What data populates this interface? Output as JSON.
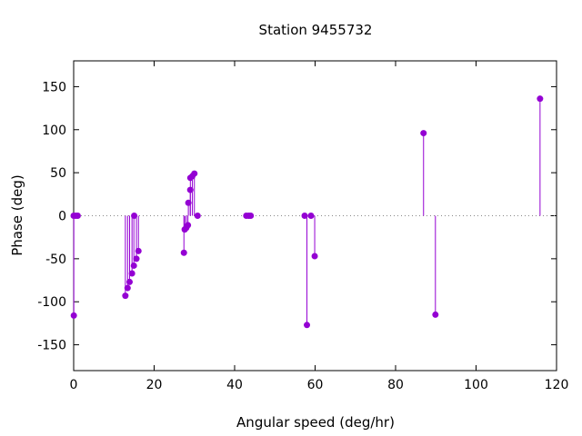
{
  "chart_data": {
    "type": "scatter",
    "style": "impulses-with-points",
    "title": "Station 9455732",
    "xlabel": "Angular speed (deg/hr)",
    "ylabel": "Phase (deg)",
    "xlim": [
      0,
      120
    ],
    "ylim": [
      -180,
      180
    ],
    "xticks": [
      0,
      20,
      40,
      60,
      80,
      100,
      120
    ],
    "yticks": [
      -150,
      -100,
      -50,
      0,
      50,
      100,
      150
    ],
    "zero_line": "dotted",
    "grid": false,
    "legend": "none",
    "color": "#9400d3",
    "points": [
      {
        "x": 0.0,
        "y": 0
      },
      {
        "x": 0.04,
        "y": -116
      },
      {
        "x": 0.5,
        "y": 0
      },
      {
        "x": 1.0,
        "y": 0
      },
      {
        "x": 12.85,
        "y": -93
      },
      {
        "x": 13.4,
        "y": -84
      },
      {
        "x": 13.9,
        "y": -77
      },
      {
        "x": 14.5,
        "y": -67
      },
      {
        "x": 14.96,
        "y": -58
      },
      {
        "x": 15.04,
        "y": 0
      },
      {
        "x": 15.6,
        "y": -50
      },
      {
        "x": 16.1,
        "y": -41
      },
      {
        "x": 27.4,
        "y": -43
      },
      {
        "x": 27.6,
        "y": -16
      },
      {
        "x": 28.0,
        "y": -14
      },
      {
        "x": 28.4,
        "y": -11
      },
      {
        "x": 28.5,
        "y": 15
      },
      {
        "x": 28.98,
        "y": 30
      },
      {
        "x": 29.0,
        "y": 44
      },
      {
        "x": 29.5,
        "y": 46
      },
      {
        "x": 30.0,
        "y": 49
      },
      {
        "x": 30.8,
        "y": 0
      },
      {
        "x": 42.9,
        "y": 0
      },
      {
        "x": 43.5,
        "y": 0
      },
      {
        "x": 44.0,
        "y": 0
      },
      {
        "x": 57.4,
        "y": 0
      },
      {
        "x": 57.97,
        "y": -127
      },
      {
        "x": 58.98,
        "y": 0
      },
      {
        "x": 59.9,
        "y": -47
      },
      {
        "x": 86.95,
        "y": 96
      },
      {
        "x": 89.9,
        "y": -115
      },
      {
        "x": 115.9,
        "y": 136
      }
    ]
  }
}
